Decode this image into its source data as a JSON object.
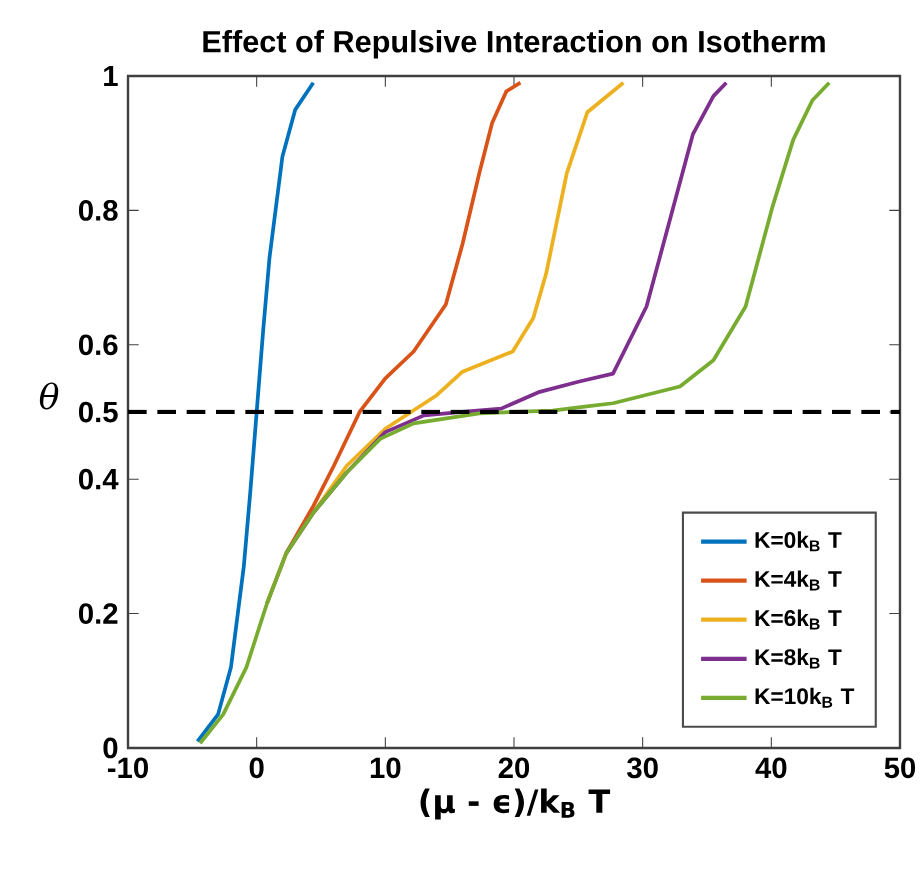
{
  "chart_data": {
    "type": "line",
    "title": "Effect of Repulsive Interaction on Isotherm",
    "xlabel": "(μ - ϵ)/k$_{B}$ T",
    "ylabel": "θ",
    "xlim": [
      -10,
      50
    ],
    "ylim": [
      0,
      1
    ],
    "xticks": [
      -10,
      0,
      10,
      20,
      30,
      40,
      50
    ],
    "yticks": [
      0,
      0.2,
      0.4,
      0.5,
      0.6,
      0.8,
      1
    ],
    "grid": false,
    "legend": "bottom right",
    "marker": "none",
    "line_style": "solid",
    "ref_lines": [
      {
        "axis": "y",
        "value": 0.5,
        "color": "#000000",
        "line_style": "dashed"
      }
    ],
    "series": [
      {
        "name": "K=0k$_{B}$ T",
        "color": "#0072bd",
        "x": [
          -4.6,
          -3,
          -2,
          -1,
          -0.5,
          0,
          0.5,
          1,
          2,
          3,
          4.4
        ],
        "values": [
          0.01,
          0.05,
          0.12,
          0.27,
          0.38,
          0.5,
          0.62,
          0.73,
          0.88,
          0.95,
          0.99
        ]
      },
      {
        "name": "K=4k$_{B}$ T",
        "color": "#d95319",
        "x": [
          0.8,
          2.3,
          4.4,
          6,
          8,
          10,
          12.2,
          14.7,
          16,
          17.3,
          18.3,
          19.4,
          20.5
        ],
        "values": [
          0.215,
          0.29,
          0.36,
          0.42,
          0.5,
          0.55,
          0.59,
          0.66,
          0.75,
          0.855,
          0.93,
          0.977,
          0.99
        ]
      },
      {
        "name": "K=6k$_{B}$ T",
        "color": "#edb120",
        "x": [
          2.3,
          4.4,
          7,
          10,
          12,
          14,
          16,
          19.9,
          21.5,
          22.5,
          24.1,
          25.7,
          28.5
        ],
        "values": [
          0.29,
          0.35,
          0.42,
          0.475,
          0.5,
          0.525,
          0.56,
          0.59,
          0.64,
          0.706,
          0.855,
          0.946,
          0.99
        ]
      },
      {
        "name": "K=8k$_{B}$ T",
        "color": "#7e2f8e",
        "x": [
          2.3,
          4.4,
          7,
          10,
          13,
          16,
          19,
          22,
          25,
          27.7,
          30.3,
          32.4,
          33.9,
          35.5,
          36.5
        ],
        "values": [
          0.29,
          0.35,
          0.41,
          0.47,
          0.495,
          0.5,
          0.505,
          0.53,
          0.545,
          0.557,
          0.657,
          0.806,
          0.913,
          0.97,
          0.99
        ]
      },
      {
        "name": "K=10k$_{B}$ T",
        "color": "#77ac30",
        "x": [
          -4.4,
          -2.6,
          -0.8,
          0.8,
          2.3,
          4.4,
          7,
          9.6,
          12.2,
          17.3,
          20,
          23,
          25.5,
          27.7,
          32.9,
          35.5,
          38,
          40.1,
          41.7,
          43.2,
          44.5
        ],
        "values": [
          0.007,
          0.05,
          0.12,
          0.215,
          0.29,
          0.35,
          0.41,
          0.46,
          0.483,
          0.498,
          0.5,
          0.502,
          0.508,
          0.513,
          0.538,
          0.577,
          0.657,
          0.806,
          0.905,
          0.964,
          0.99
        ]
      }
    ]
  }
}
